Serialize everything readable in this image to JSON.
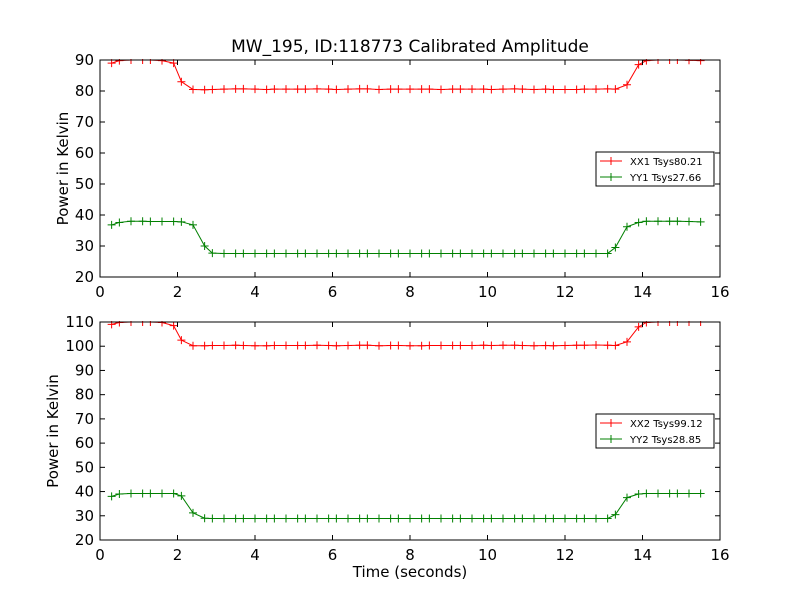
{
  "title": "MW_195, ID:118773 Calibrated Amplitude",
  "chart_data": [
    {
      "type": "line",
      "ylabel": "Power in Kelvin",
      "xlabel": "",
      "xlim": [
        0,
        16
      ],
      "ylim": [
        20,
        90
      ],
      "xticks": [
        0,
        2,
        4,
        6,
        8,
        10,
        12,
        14,
        16
      ],
      "yticks": [
        20,
        30,
        40,
        50,
        60,
        70,
        80,
        90
      ],
      "xtick_labels": [
        "0",
        "2",
        "4",
        "6",
        "8",
        "10",
        "12",
        "14",
        "16"
      ],
      "ytick_labels": [
        "20",
        "30",
        "40",
        "50",
        "60",
        "70",
        "80",
        "90"
      ],
      "grid": false,
      "legend_position": "center-right",
      "x": [
        0.3,
        0.5,
        0.8,
        1.1,
        1.3,
        1.6,
        1.9,
        2.1,
        2.4,
        2.7,
        2.9,
        3.2,
        3.5,
        3.7,
        4.0,
        4.3,
        4.5,
        4.8,
        5.1,
        5.3,
        5.6,
        5.9,
        6.1,
        6.4,
        6.7,
        6.9,
        7.2,
        7.5,
        7.7,
        8.0,
        8.3,
        8.5,
        8.8,
        9.1,
        9.3,
        9.6,
        9.9,
        10.1,
        10.4,
        10.7,
        10.9,
        11.2,
        11.5,
        11.7,
        12.0,
        12.3,
        12.5,
        12.8,
        13.1,
        13.3,
        13.6,
        13.9,
        14.1,
        14.4,
        14.7,
        14.9,
        15.2,
        15.5
      ],
      "series": [
        {
          "name": "XX1 Tsys80.21",
          "color": "#ff0000",
          "values": [
            89.0,
            89.8,
            90.0,
            90.0,
            90.0,
            89.8,
            89.0,
            83.0,
            80.5,
            80.4,
            80.5,
            80.6,
            80.7,
            80.7,
            80.6,
            80.5,
            80.6,
            80.6,
            80.6,
            80.6,
            80.7,
            80.6,
            80.5,
            80.6,
            80.7,
            80.7,
            80.5,
            80.6,
            80.6,
            80.6,
            80.6,
            80.6,
            80.5,
            80.6,
            80.6,
            80.6,
            80.6,
            80.5,
            80.6,
            80.7,
            80.6,
            80.5,
            80.6,
            80.5,
            80.5,
            80.5,
            80.6,
            80.6,
            80.7,
            80.6,
            82.0,
            88.5,
            89.8,
            90.0,
            90.0,
            90.0,
            89.9,
            89.8
          ]
        },
        {
          "name": "YY1 Tsys27.66",
          "color": "#008000",
          "values": [
            36.8,
            37.6,
            38.0,
            38.0,
            37.9,
            37.9,
            37.9,
            37.8,
            36.8,
            30.0,
            27.7,
            27.6,
            27.6,
            27.6,
            27.6,
            27.6,
            27.6,
            27.6,
            27.6,
            27.6,
            27.6,
            27.6,
            27.6,
            27.6,
            27.6,
            27.6,
            27.6,
            27.6,
            27.6,
            27.6,
            27.6,
            27.6,
            27.6,
            27.6,
            27.6,
            27.6,
            27.6,
            27.6,
            27.6,
            27.6,
            27.6,
            27.6,
            27.6,
            27.6,
            27.6,
            27.6,
            27.6,
            27.6,
            27.6,
            29.5,
            36.2,
            37.6,
            38.0,
            38.0,
            38.0,
            38.0,
            37.9,
            37.8
          ]
        }
      ]
    },
    {
      "type": "line",
      "ylabel": "Power in Kelvin",
      "xlabel": "Time (seconds)",
      "xlim": [
        0,
        16
      ],
      "ylim": [
        20,
        110
      ],
      "xticks": [
        0,
        2,
        4,
        6,
        8,
        10,
        12,
        14,
        16
      ],
      "yticks": [
        20,
        30,
        40,
        50,
        60,
        70,
        80,
        90,
        100,
        110
      ],
      "xtick_labels": [
        "0",
        "2",
        "4",
        "6",
        "8",
        "10",
        "12",
        "14",
        "16"
      ],
      "ytick_labels": [
        "20",
        "30",
        "40",
        "50",
        "60",
        "70",
        "80",
        "90",
        "100",
        "110"
      ],
      "grid": false,
      "legend_position": "center-right",
      "x": [
        0.3,
        0.5,
        0.8,
        1.1,
        1.3,
        1.6,
        1.9,
        2.1,
        2.4,
        2.7,
        2.9,
        3.2,
        3.5,
        3.7,
        4.0,
        4.3,
        4.5,
        4.8,
        5.1,
        5.3,
        5.6,
        5.9,
        6.1,
        6.4,
        6.7,
        6.9,
        7.2,
        7.5,
        7.7,
        8.0,
        8.3,
        8.5,
        8.8,
        9.1,
        9.3,
        9.6,
        9.9,
        10.1,
        10.4,
        10.7,
        10.9,
        11.2,
        11.5,
        11.7,
        12.0,
        12.3,
        12.5,
        12.8,
        13.1,
        13.3,
        13.6,
        13.9,
        14.1,
        14.4,
        14.7,
        14.9,
        15.2,
        15.5
      ],
      "series": [
        {
          "name": "XX2 Tsys99.12",
          "color": "#ff0000",
          "values": [
            109.0,
            109.8,
            110.0,
            110.0,
            110.0,
            109.8,
            108.5,
            102.5,
            100.2,
            100.2,
            100.3,
            100.3,
            100.4,
            100.3,
            100.2,
            100.2,
            100.3,
            100.3,
            100.3,
            100.3,
            100.4,
            100.3,
            100.2,
            100.3,
            100.4,
            100.4,
            100.2,
            100.3,
            100.3,
            100.2,
            100.2,
            100.3,
            100.3,
            100.3,
            100.3,
            100.3,
            100.4,
            100.3,
            100.4,
            100.4,
            100.3,
            100.2,
            100.3,
            100.2,
            100.3,
            100.4,
            100.4,
            100.5,
            100.4,
            100.3,
            101.8,
            108.0,
            109.8,
            110.0,
            110.0,
            110.0,
            110.0,
            110.0
          ]
        },
        {
          "name": "YY2 Tsys28.85",
          "color": "#008000",
          "values": [
            38.0,
            39.0,
            39.2,
            39.2,
            39.2,
            39.2,
            39.2,
            38.2,
            31.2,
            29.0,
            28.9,
            28.9,
            28.9,
            28.9,
            28.9,
            28.9,
            28.9,
            28.9,
            28.9,
            28.9,
            28.9,
            28.9,
            28.9,
            28.9,
            28.9,
            28.9,
            28.9,
            28.9,
            28.9,
            28.9,
            28.9,
            28.9,
            28.9,
            28.9,
            28.9,
            28.9,
            28.9,
            28.9,
            28.9,
            28.9,
            28.9,
            28.9,
            28.9,
            28.9,
            28.9,
            28.9,
            28.9,
            28.9,
            28.9,
            30.5,
            37.5,
            39.0,
            39.2,
            39.2,
            39.2,
            39.2,
            39.2,
            39.2
          ]
        }
      ]
    }
  ]
}
